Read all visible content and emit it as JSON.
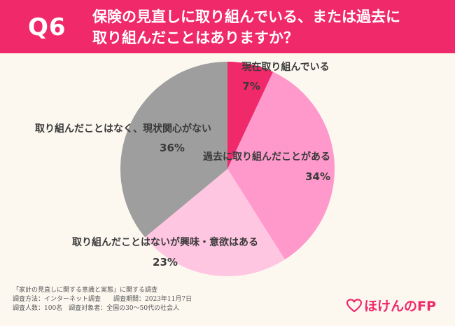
{
  "header": {
    "question_number": "Q6",
    "title": "保険の見直しに取り組んでいる、または過去に\n取り組んだことはありますか？"
  },
  "chart_data": {
    "type": "pie",
    "title": "保険の見直しに取り組んでいる、または過去に取り組んだことはありますか？",
    "slices": [
      {
        "label": "現在取り組んでいる",
        "percent_label": "7%",
        "value": 7,
        "color": "#f0296b"
      },
      {
        "label": "過去に取り組んだことがある",
        "percent_label": "34%",
        "value": 34,
        "color": "#ff99cc"
      },
      {
        "label": "取り組んだことはないが興味・意欲はある",
        "percent_label": "23%",
        "value": 23,
        "color": "#ffc6e2"
      },
      {
        "label": "取り組んだことはなく、現状関心がない",
        "percent_label": "36%",
        "value": 36,
        "color": "#9e9e9e"
      }
    ]
  },
  "footer": {
    "line1": "「家計の見直しに関する意識と実態」に関する調査",
    "line2": "調査方法：インターネット調査　　調査期間：2023年11月7日",
    "line3": "調査人数：100名　調査対象者：全国の30〜50代の社会人"
  },
  "brand": {
    "name": "ほけんのFP",
    "icon": "heart-icon"
  }
}
